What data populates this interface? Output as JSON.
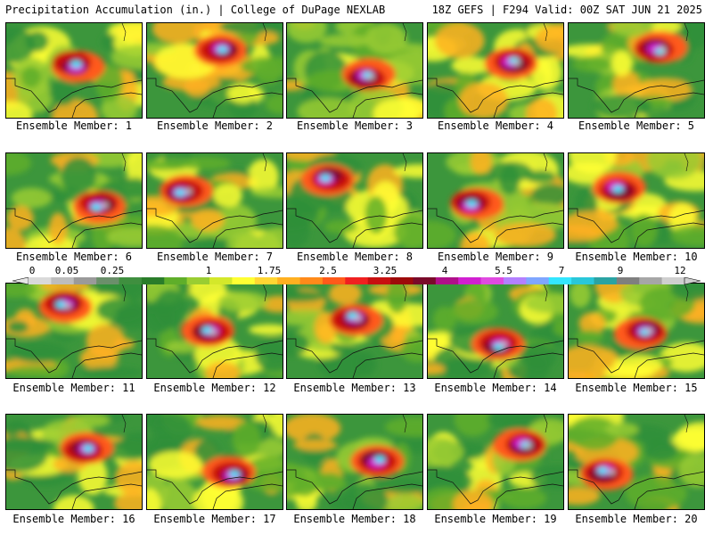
{
  "header": {
    "left": "Precipitation Accumulation (in.) | College of DuPage NEXLAB",
    "right": "18Z GEFS | F294 Valid: 00Z SAT JUN 21 2025"
  },
  "colorbar": {
    "ticks": [
      "0",
      "0.05",
      "0.25",
      "1",
      "1.75",
      "2.5",
      "3.25",
      "4",
      "5.5",
      "7",
      "9",
      "12"
    ],
    "colors": [
      "#d9d9d9",
      "#bdbdbd",
      "#9a9a9a",
      "#6b8f6b",
      "#3f8f3f",
      "#2a7d2a",
      "#5fae2a",
      "#9acd32",
      "#d4e82a",
      "#ffff33",
      "#ffd633",
      "#ffb020",
      "#ff8a1a",
      "#ff5a1a",
      "#f02020",
      "#c81010",
      "#9e0a0a",
      "#7a0a2a",
      "#b0108a",
      "#d11fd1",
      "#e04ae0",
      "#b380ff",
      "#7fa6ff",
      "#33e6ff",
      "#29c7d9",
      "#2aa3a3",
      "#7f7f7f",
      "#a6a6a6",
      "#cfcfcf"
    ]
  },
  "members": [
    {
      "label": "Ensemble Member: 1"
    },
    {
      "label": "Ensemble Member: 2"
    },
    {
      "label": "Ensemble Member: 3"
    },
    {
      "label": "Ensemble Member: 4"
    },
    {
      "label": "Ensemble Member: 5"
    },
    {
      "label": "Ensemble Member: 6"
    },
    {
      "label": "Ensemble Member: 7"
    },
    {
      "label": "Ensemble Member: 8"
    },
    {
      "label": "Ensemble Member: 9"
    },
    {
      "label": "Ensemble Member: 10"
    },
    {
      "label": "Ensemble Member: 11"
    },
    {
      "label": "Ensemble Member: 12"
    },
    {
      "label": "Ensemble Member: 13"
    },
    {
      "label": "Ensemble Member: 14"
    },
    {
      "label": "Ensemble Member: 15"
    },
    {
      "label": "Ensemble Member: 16"
    },
    {
      "label": "Ensemble Member: 17"
    },
    {
      "label": "Ensemble Member: 18"
    },
    {
      "label": "Ensemble Member: 19"
    },
    {
      "label": "Ensemble Member: 20"
    }
  ]
}
